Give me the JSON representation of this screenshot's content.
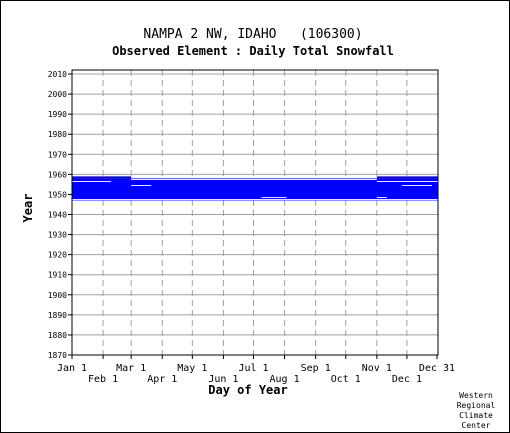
{
  "chart_data": {
    "type": "heatmap",
    "title": "NAMPA 2 NW, IDAHO   (106300)",
    "subtitle": "Observed Element : Daily Total Snowfall",
    "xlabel": "Day of Year",
    "ylabel": "Year",
    "x_ticks_upper": [
      {
        "label": "Jan 1",
        "day": 1
      },
      {
        "label": "Mar 1",
        "day": 60
      },
      {
        "label": "May 1",
        "day": 121
      },
      {
        "label": "Jul 1",
        "day": 182
      },
      {
        "label": "Sep 1",
        "day": 244
      },
      {
        "label": "Nov 1",
        "day": 305
      },
      {
        "label": "Dec 31",
        "day": 365
      }
    ],
    "x_ticks_lower": [
      {
        "label": "Feb 1",
        "day": 32
      },
      {
        "label": "Apr 1",
        "day": 91
      },
      {
        "label": "Jun 1",
        "day": 152
      },
      {
        "label": "Aug 1",
        "day": 213
      },
      {
        "label": "Oct 1",
        "day": 274
      },
      {
        "label": "Dec 1",
        "day": 335
      }
    ],
    "y_ticks": [
      1870,
      1880,
      1890,
      1900,
      1910,
      1920,
      1930,
      1940,
      1950,
      1960,
      1970,
      1980,
      1990,
      2000,
      2010
    ],
    "xlim": [
      1,
      366
    ],
    "ylim": [
      1870,
      2012
    ],
    "grid": true,
    "series": [
      {
        "color": "#0000ff",
        "blocks": [
          {
            "start_day": 1,
            "end_day": 366,
            "start_year": 1947,
            "end_year": 1958
          },
          {
            "start_day": 1,
            "end_day": 60,
            "start_year": 1958,
            "end_year": 1959
          },
          {
            "start_day": 305,
            "end_day": 366,
            "start_year": 1958,
            "end_year": 1959
          }
        ],
        "gaps": [
          {
            "start_day": 1,
            "end_day": 366,
            "start_year": 1947,
            "end_year": 1948
          },
          {
            "start_day": 60,
            "end_day": 305,
            "start_year": 1957,
            "end_year": 1958
          },
          {
            "start_day": 305,
            "end_day": 366,
            "start_year": 1956,
            "end_year": 1957
          },
          {
            "start_day": 1,
            "end_day": 40,
            "start_year": 1956,
            "end_year": 1957
          },
          {
            "start_day": 60,
            "end_day": 80,
            "start_year": 1954,
            "end_year": 1955
          },
          {
            "start_day": 330,
            "end_day": 360,
            "start_year": 1954,
            "end_year": 1955
          },
          {
            "start_day": 305,
            "end_day": 315,
            "start_year": 1948,
            "end_year": 1949
          },
          {
            "start_day": 190,
            "end_day": 215,
            "start_year": 1948,
            "end_year": 1949
          }
        ]
      }
    ]
  },
  "credit": [
    "Western",
    "Regional",
    "Climate",
    "Center"
  ]
}
